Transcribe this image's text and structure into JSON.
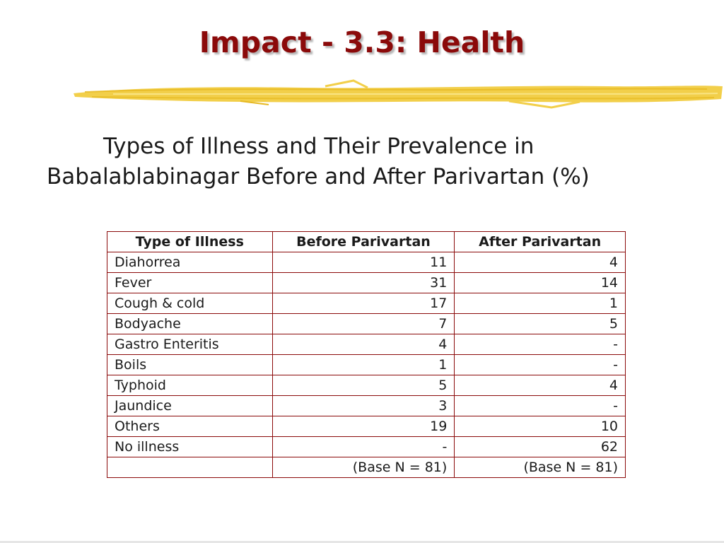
{
  "slide": {
    "title": "Impact - 3.3: Health",
    "subtitle_line1": "Types of Illness and Their Prevalence in",
    "subtitle_line2": "Babalablabinagar Before and After Parivartan (%)"
  },
  "colors": {
    "title": "#8b0a0a",
    "table_border": "#8b0a0a",
    "brush_stroke": "#f2cf4a",
    "text": "#1a1a1a"
  },
  "table": {
    "headers": [
      "Type of Illness",
      "Before Parivartan",
      "After Parivartan"
    ],
    "rows": [
      [
        "Diahorrea",
        "11",
        "4"
      ],
      [
        "Fever",
        "31",
        "14"
      ],
      [
        "Cough & cold",
        "17",
        "1"
      ],
      [
        "Bodyache",
        "7",
        "5"
      ],
      [
        "Gastro Enteritis",
        "4",
        "-"
      ],
      [
        "Boils",
        "1",
        "-"
      ],
      [
        "Typhoid",
        "5",
        "4"
      ],
      [
        "Jaundice",
        "3",
        "-"
      ],
      [
        "Others",
        "19",
        "10"
      ],
      [
        "No illness",
        "-",
        "62"
      ],
      [
        "",
        "(Base N = 81)",
        "(Base N = 81)"
      ]
    ]
  }
}
